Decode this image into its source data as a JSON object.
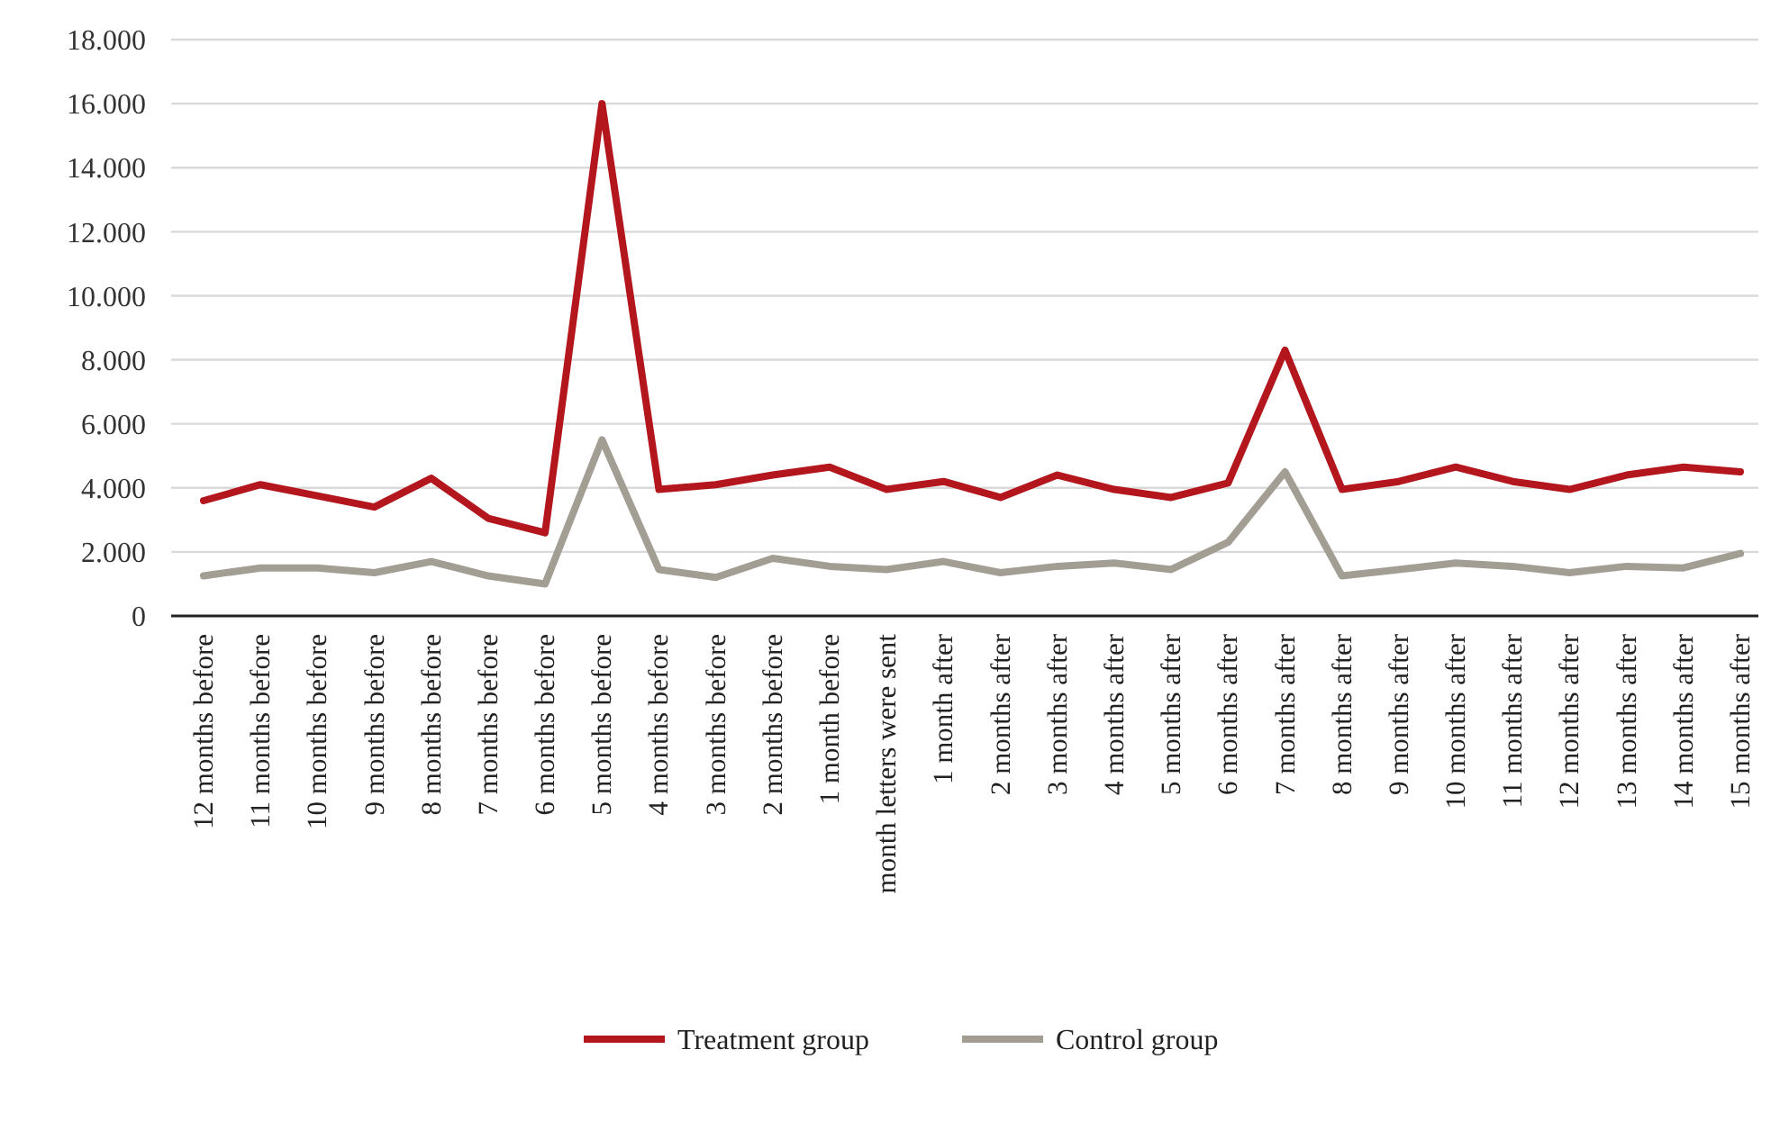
{
  "chart_data": {
    "type": "line",
    "categories": [
      "12 months before",
      "11 months before",
      "10 months before",
      "9 months before",
      "8 months before",
      "7 months before",
      "6 months before",
      "5 months before",
      "4 months before",
      "3 months before",
      "2 months before",
      "1 month before",
      "month letters were sent",
      "1 month after",
      "2 months after",
      "3 months after",
      "4 months after",
      "5 months after",
      "6 months after",
      "7 months after",
      "8 months after",
      "9 months after",
      "10 months after",
      "11 months after",
      "12 months after",
      "13 months after",
      "14 months after",
      "15 months after"
    ],
    "series": [
      {
        "name": "Treatment group",
        "color": "#b3161c",
        "values": [
          3600,
          4100,
          3750,
          3400,
          4300,
          3050,
          2600,
          16000,
          3950,
          4100,
          4400,
          4650,
          3950,
          4200,
          3700,
          4400,
          3950,
          3700,
          4150,
          8300,
          3950,
          4200,
          4650,
          4200,
          3950,
          4400,
          4650,
          4500
        ]
      },
      {
        "name": "Control group",
        "color": "#a39e93",
        "values": [
          1250,
          1500,
          1500,
          1350,
          1700,
          1250,
          1000,
          5500,
          1450,
          1200,
          1800,
          1550,
          1450,
          1700,
          1350,
          1550,
          1650,
          1450,
          2300,
          4500,
          1250,
          1450,
          1650,
          1550,
          1350,
          1550,
          1500,
          1950
        ]
      }
    ],
    "ylim": [
      0,
      18000
    ],
    "yticks": [
      {
        "value": 0,
        "label": "0"
      },
      {
        "value": 2000,
        "label": "2.000"
      },
      {
        "value": 4000,
        "label": "4.000"
      },
      {
        "value": 6000,
        "label": "6.000"
      },
      {
        "value": 8000,
        "label": "8.000"
      },
      {
        "value": 10000,
        "label": "10.000"
      },
      {
        "value": 12000,
        "label": "12.000"
      },
      {
        "value": 14000,
        "label": "14.000"
      },
      {
        "value": 16000,
        "label": "16.000"
      },
      {
        "value": 18000,
        "label": "18.000"
      }
    ],
    "grid": "y",
    "legend": "bottom",
    "marker": "none",
    "line_style": "solid"
  }
}
